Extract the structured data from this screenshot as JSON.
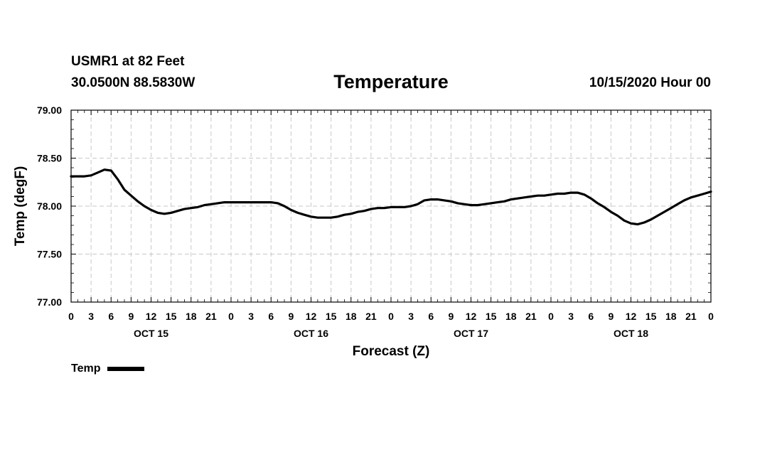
{
  "header": {
    "station": "USMR1 at 82 Feet",
    "coords": "30.0500N 88.5830W",
    "title": "Temperature",
    "datetime": "10/15/2020 Hour 00"
  },
  "chart_data": {
    "type": "line",
    "title": "Temperature",
    "xlabel": "Forecast (Z)",
    "ylabel": "Temp (degF)",
    "ylim": [
      77.0,
      79.0
    ],
    "yticks": [
      "77.00",
      "77.50",
      "78.00",
      "78.50",
      "79.00"
    ],
    "x_range_hours": [
      0,
      96
    ],
    "x_tick_labels": [
      "0",
      "3",
      "6",
      "9",
      "12",
      "15",
      "18",
      "21",
      "0",
      "3",
      "6",
      "9",
      "12",
      "15",
      "18",
      "21",
      "0",
      "3",
      "6",
      "9",
      "12",
      "15",
      "18",
      "21",
      "0",
      "3",
      "6",
      "9",
      "12",
      "15",
      "18",
      "21",
      "0"
    ],
    "day_labels": [
      {
        "label": "OCT 15",
        "hour": 12
      },
      {
        "label": "OCT 16",
        "hour": 36
      },
      {
        "label": "OCT 17",
        "hour": 60
      },
      {
        "label": "OCT 18",
        "hour": 84
      }
    ],
    "grid": true,
    "legend": "bottom-left",
    "series": [
      {
        "name": "Temp",
        "color": "#000000",
        "x": [
          0,
          1,
          2,
          3,
          4,
          5,
          6,
          7,
          8,
          9,
          10,
          11,
          12,
          13,
          14,
          15,
          16,
          17,
          18,
          19,
          20,
          21,
          22,
          23,
          24,
          25,
          26,
          27,
          28,
          29,
          30,
          31,
          32,
          33,
          34,
          35,
          36,
          37,
          38,
          39,
          40,
          41,
          42,
          43,
          44,
          45,
          46,
          47,
          48,
          49,
          50,
          51,
          52,
          53,
          54,
          55,
          56,
          57,
          58,
          59,
          60,
          61,
          62,
          63,
          64,
          65,
          66,
          67,
          68,
          69,
          70,
          71,
          72,
          73,
          74,
          75,
          76,
          77,
          78,
          79,
          80,
          81,
          82,
          83,
          84,
          85,
          86,
          87,
          88,
          89,
          90,
          91,
          92,
          93,
          94,
          95,
          96
        ],
        "values": [
          78.31,
          78.31,
          78.31,
          78.32,
          78.35,
          78.38,
          78.37,
          78.28,
          78.17,
          78.11,
          78.05,
          78.0,
          77.96,
          77.93,
          77.92,
          77.93,
          77.95,
          77.97,
          77.98,
          77.99,
          78.01,
          78.02,
          78.03,
          78.04,
          78.04,
          78.04,
          78.04,
          78.04,
          78.04,
          78.04,
          78.04,
          78.03,
          78.0,
          77.96,
          77.93,
          77.91,
          77.89,
          77.88,
          77.88,
          77.88,
          77.89,
          77.91,
          77.92,
          77.94,
          77.95,
          77.97,
          77.98,
          77.98,
          77.99,
          77.99,
          77.99,
          78.0,
          78.02,
          78.06,
          78.07,
          78.07,
          78.06,
          78.05,
          78.03,
          78.02,
          78.01,
          78.01,
          78.02,
          78.03,
          78.04,
          78.05,
          78.07,
          78.08,
          78.09,
          78.1,
          78.11,
          78.11,
          78.12,
          78.13,
          78.13,
          78.14,
          78.14,
          78.12,
          78.08,
          78.03,
          77.99,
          77.94,
          77.9,
          77.85,
          77.82,
          77.81,
          77.83,
          77.86,
          77.9,
          77.94,
          77.98,
          78.02,
          78.06,
          78.09,
          78.11,
          78.13,
          78.15
        ]
      }
    ]
  }
}
